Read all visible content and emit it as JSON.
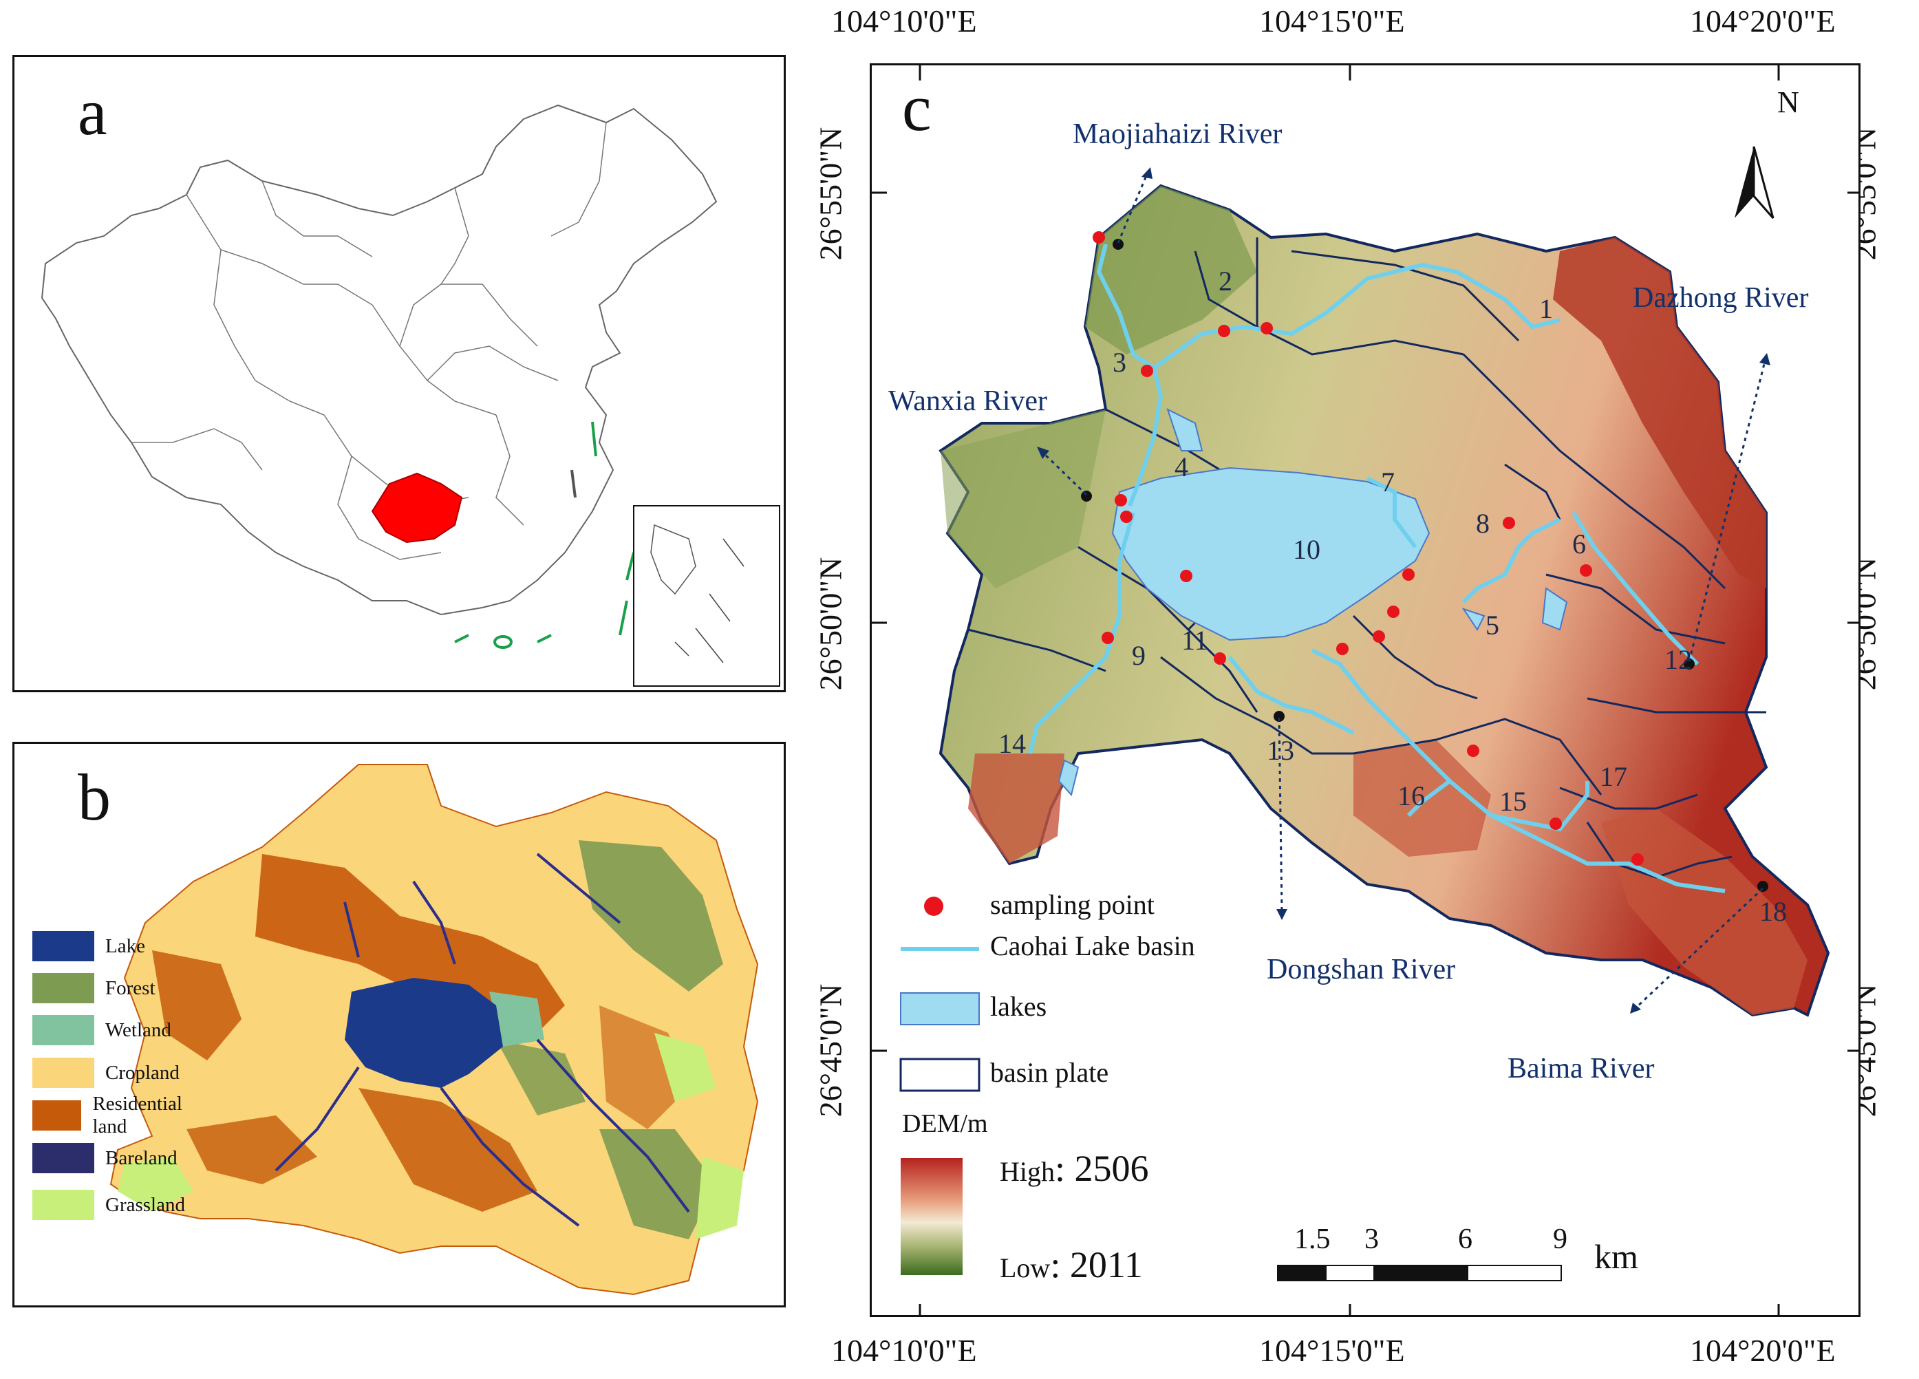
{
  "panels": {
    "a": {
      "label": "a"
    },
    "b": {
      "label": "b"
    },
    "c": {
      "label": "c"
    }
  },
  "landuse_legend": [
    {
      "label": "Lake",
      "color": "#1c3a8a"
    },
    {
      "label": "Forest",
      "color": "#7e9b52"
    },
    {
      "label": "Wetland",
      "color": "#80c39e"
    },
    {
      "label": "Cropland",
      "color": "#fbd57a"
    },
    {
      "label": "Residential land",
      "color": "#c65a0b"
    },
    {
      "label": "Bareland",
      "color": "#2b2e6b"
    },
    {
      "label": "Grassland",
      "color": "#c8ef7a"
    }
  ],
  "axes": {
    "lon_top": [
      "104°10'0\"E",
      "104°15'0\"E",
      "104°20'0\"E"
    ],
    "lon_bottom": [
      "104°10'0\"E",
      "104°15'0\"E",
      "104°20'0\"E"
    ],
    "lat_left": [
      "26°55'0\"N",
      "26°50'0\"N",
      "26°45'0\"N"
    ],
    "lat_right": [
      "26°55'0\"N",
      "26°50'0\"N",
      "26°45'0\"N"
    ]
  },
  "north_label": "N",
  "rivers": {
    "maojiahaizi": "Maojiahaizi River",
    "dazhong": "Dazhong River",
    "wanxia": "Wanxia River",
    "dongshan": "Dongshan River",
    "baima": "Baima River"
  },
  "subbasins": [
    "1",
    "2",
    "3",
    "4",
    "5",
    "6",
    "7",
    "8",
    "9",
    "10",
    "11",
    "12",
    "13",
    "14",
    "15",
    "16",
    "17",
    "18"
  ],
  "legend_c": {
    "sampling_point": "sampling point",
    "basin": "Caohai Lake basin",
    "lakes": "lakes",
    "basin_plate": "basin plate"
  },
  "dem": {
    "title": "DEM/m",
    "high_label": "High",
    "high_value": ": 2506",
    "low_label": "Low",
    "low_value": ": 2011"
  },
  "scalebar": {
    "ticks": [
      "1.5",
      "3",
      "6",
      "9"
    ],
    "unit": "km"
  },
  "colors": {
    "sampling": "#e8141c",
    "river": "#6fd0ee",
    "lake": "#9fdcf2",
    "plate": "#13285e",
    "guangzhou_red": "#ff0000"
  }
}
